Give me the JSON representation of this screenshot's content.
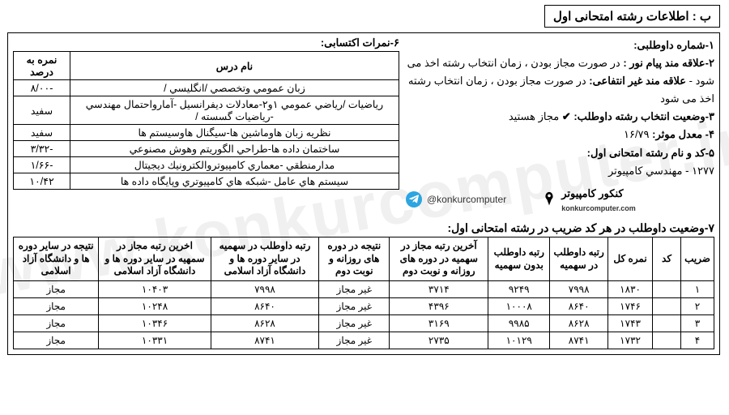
{
  "watermark": "www.konkurcomputer.ir",
  "section_title": "ب : اطلاعات رشته امتحانی اول",
  "info": {
    "l1_label": "۱-شماره داوطلبی:",
    "l2_label": "۲-علاقه مند پیام نور :",
    "l2_text": " در صورت مجاز بودن ، زمان انتخاب رشته اخذ می شود - ",
    "l2b_label": "علاقه مند غیر انتفاعی:",
    "l2b_text": " در صورت مجاز بودن ، زمان انتخاب رشته اخذ می شود",
    "l3_label": "۳-وضعیت انتخاب رشته داوطلب:",
    "l3_check": "✔",
    "l3_value": " مجاز هستید",
    "l4_label": "۴- معدل موثر:",
    "l4_value": " ۱۶/۷۹",
    "l5_label": "۵-کد و نام رشته امتحانی اول:",
    "l5_value": "۱۲۷۷ - مهندسي كامپيوتر"
  },
  "brand": {
    "handle": "@konkurcomputer",
    "name": "کنکور کامپیوتر",
    "sub": "konkurcomputer.com"
  },
  "scores": {
    "title": "۶-نمرات اکتسابی:",
    "headers": {
      "name": "نام درس",
      "pct": "نمره به درصد"
    },
    "rows": [
      {
        "name": "زبان عمومي وتخصصي /انگليسي /",
        "pct": "-۸/۰۰"
      },
      {
        "name": "رياضيات /رياضي عمومي ۱و۲-معادلات ديفرانسيل -آمارواحتمال مهندسي -رياضيات گسسته /",
        "pct": "سفید"
      },
      {
        "name": "نظريه زبان هاوماشين ها-سيگنال هاوسيستم ها",
        "pct": "سفید"
      },
      {
        "name": "ساختمان داده ها-طراحي الگوريتم وهوش مصنوعي",
        "pct": "-۳/۳۲"
      },
      {
        "name": "مدارمنطقي -معماري كامپيوتروالكترونيك ديجيتال",
        "pct": "-۱/۶۶"
      },
      {
        "name": "سيستم هاي عامل -شبكه هاي كامپيوتري وپايگاه داده ها",
        "pct": "۱۰/۴۲"
      }
    ]
  },
  "status": {
    "title": "۷-وضعیت داوطلب در هر کد ضریب در رشته امتحانی اول:",
    "headers": [
      "ضریب",
      "کد",
      "نمره کل",
      "رتبه داوطلب در سهمیه",
      "رتبه داوطلب بدون سهمیه",
      "آخرین رتبه مجاز در سهمیه در دوره های روزانه و نوبت دوم",
      "نتیجه در دوره های روزانه و نوبت دوم",
      "رتبه داوطلب در سهمیه در سایر دوره ها و دانشگاه آزاد اسلامی",
      "اخرین رتبه مجاز در سمهیه در سایر دوره ها و دانشگاه آزاد اسلامی",
      "نتیجه در سایر دوره ها و دانشگاه آزاد اسلامی"
    ],
    "rows": [
      [
        "۱",
        "",
        "۱۸۳۰",
        "۷۹۹۸",
        "۹۲۴۹",
        "۳۷۱۴",
        "غیر مجاز",
        "۷۹۹۸",
        "۱۰۴۰۳",
        "مجاز"
      ],
      [
        "۲",
        "",
        "۱۷۴۶",
        "۸۶۴۰",
        "۱۰۰۰۸",
        "۴۳۹۶",
        "غیر مجاز",
        "۸۶۴۰",
        "۱۰۲۴۸",
        "مجاز"
      ],
      [
        "۳",
        "",
        "۱۷۴۳",
        "۸۶۲۸",
        "۹۹۸۵",
        "۳۱۶۹",
        "غیر مجاز",
        "۸۶۲۸",
        "۱۰۳۴۶",
        "مجاز"
      ],
      [
        "۴",
        "",
        "۱۷۳۲",
        "۸۷۴۱",
        "۱۰۱۲۹",
        "۲۷۳۵",
        "غیر مجاز",
        "۸۷۴۱",
        "۱۰۳۳۱",
        "مجاز"
      ]
    ]
  }
}
